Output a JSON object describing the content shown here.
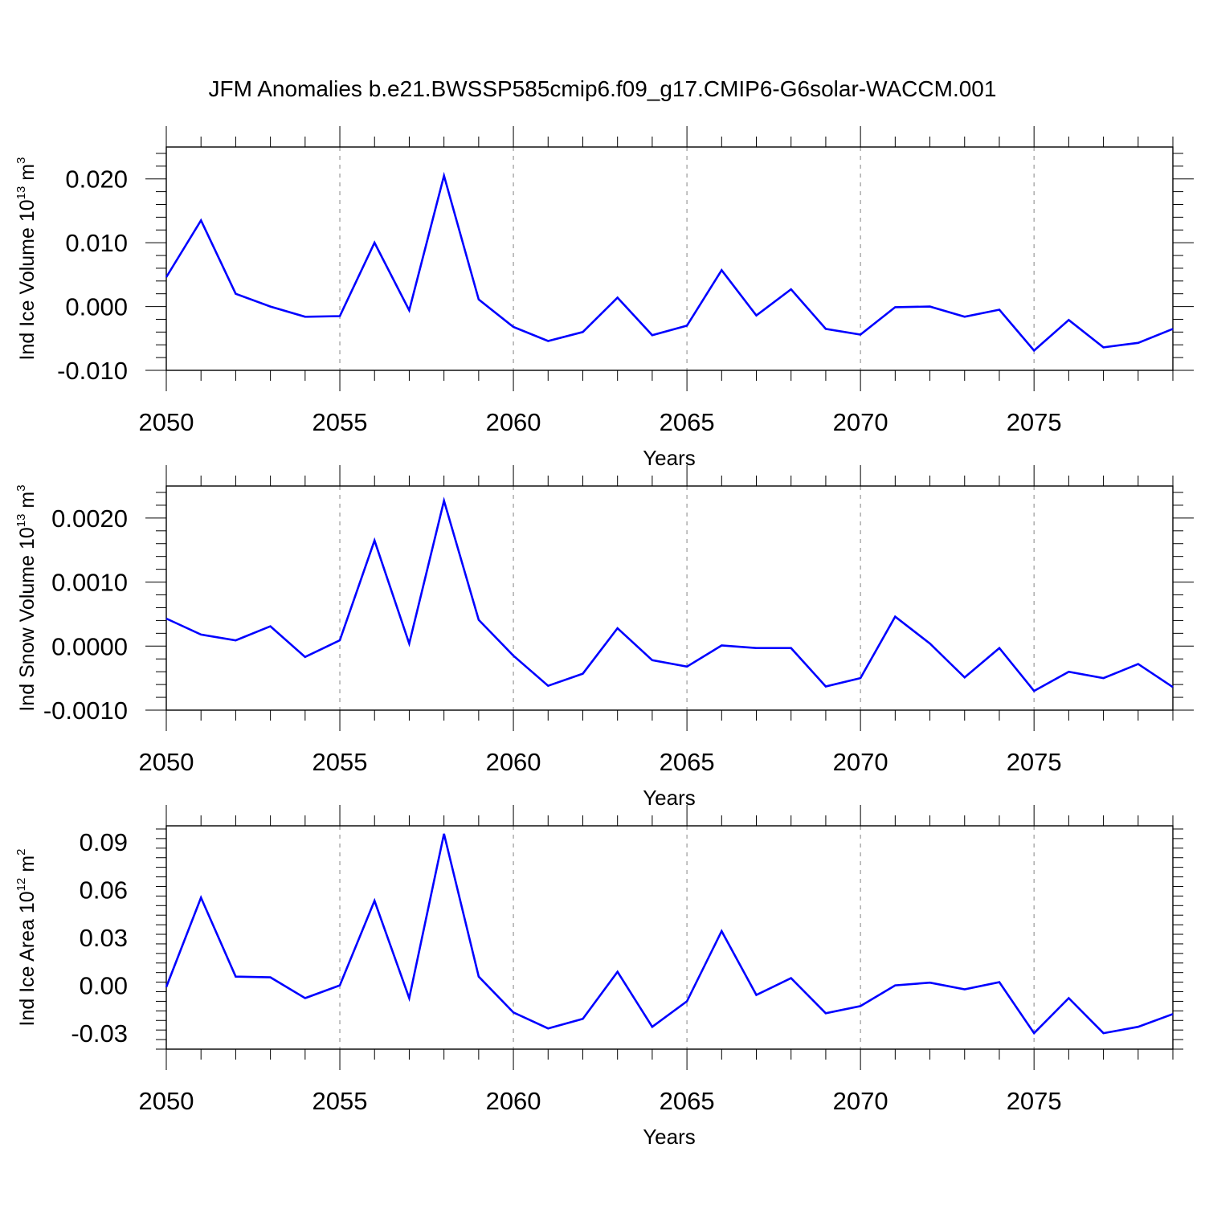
{
  "title": "JFM Anomalies b.e21.BWSSP585cmip6.f09_g17.CMIP6-G6solar-WACCM.001",
  "colors": {
    "line": "#0000ff",
    "axis": "#000000",
    "grid": "#999999"
  },
  "chart_data": [
    {
      "type": "line",
      "ylabel": {
        "text": "Ind Ice Volume 10",
        "sup": "13",
        "mid": " m",
        "sup2": "3"
      },
      "xlabel": "Years",
      "xlim": [
        2050,
        2079
      ],
      "ylim": [
        -0.01,
        0.025
      ],
      "xticks": [
        "2050",
        "2055",
        "2060",
        "2065",
        "2070",
        "2075"
      ],
      "yticks": [
        "-0.010",
        "0.000",
        "0.010",
        "0.020"
      ],
      "ytick_values": [
        -0.01,
        0.0,
        0.01,
        0.02
      ],
      "grid": "vertical dashed at labeled years",
      "x": [
        2050,
        2051,
        2052,
        2053,
        2054,
        2055,
        2056,
        2057,
        2058,
        2059,
        2060,
        2061,
        2062,
        2063,
        2064,
        2065,
        2066,
        2067,
        2068,
        2069,
        2070,
        2071,
        2072,
        2073,
        2074,
        2075,
        2076,
        2077,
        2078,
        2079
      ],
      "series": [
        {
          "values": [
            0.0046,
            0.0135,
            0.002,
            0.0,
            -0.0016,
            -0.0015,
            0.01,
            -0.0006,
            0.0205,
            0.0011,
            -0.0032,
            -0.0054,
            -0.004,
            0.0014,
            -0.0045,
            -0.003,
            0.0057,
            -0.0014,
            0.0027,
            -0.0035,
            -0.0044,
            -0.0001,
            0.0,
            -0.0016,
            -0.0005,
            -0.0069,
            -0.0021,
            -0.0064,
            -0.0057,
            -0.0035
          ]
        }
      ]
    },
    {
      "type": "line",
      "ylabel": {
        "text": "Ind Snow Volume 10",
        "sup": "13",
        "mid": " m",
        "sup2": "3"
      },
      "xlabel": "Years",
      "xlim": [
        2050,
        2079
      ],
      "ylim": [
        -0.001,
        0.0025
      ],
      "xticks": [
        "2050",
        "2055",
        "2060",
        "2065",
        "2070",
        "2075"
      ],
      "yticks": [
        "-0.0010",
        "0.0000",
        "0.0010",
        "0.0020"
      ],
      "ytick_values": [
        -0.001,
        0.0,
        0.001,
        0.002
      ],
      "grid": "vertical dashed at labeled years",
      "x": [
        2050,
        2051,
        2052,
        2053,
        2054,
        2055,
        2056,
        2057,
        2058,
        2059,
        2060,
        2061,
        2062,
        2063,
        2064,
        2065,
        2066,
        2067,
        2068,
        2069,
        2070,
        2071,
        2072,
        2073,
        2074,
        2075,
        2076,
        2077,
        2078,
        2079
      ],
      "series": [
        {
          "values": [
            0.00043,
            0.00018,
            9e-05,
            0.00031,
            -0.00017,
            9e-05,
            0.00165,
            4e-05,
            0.00227,
            0.00041,
            -0.00015,
            -0.00062,
            -0.00043,
            0.00028,
            -0.00022,
            -0.00032,
            1e-05,
            -3e-05,
            -3e-05,
            -0.00063,
            -0.0005,
            0.00046,
            4e-05,
            -0.00049,
            -3e-05,
            -0.0007,
            -0.0004,
            -0.0005,
            -0.00028,
            -0.00064
          ]
        }
      ]
    },
    {
      "type": "line",
      "ylabel": {
        "text": "Ind Ice Area 10",
        "sup": "12",
        "mid": " m",
        "sup2": "2"
      },
      "xlabel": "Years",
      "xlim": [
        2050,
        2079
      ],
      "ylim": [
        -0.04,
        0.1
      ],
      "xticks": [
        "2050",
        "2055",
        "2060",
        "2065",
        "2070",
        "2075"
      ],
      "yticks": [
        "-0.03",
        "0.00",
        "0.03",
        "0.06",
        "0.09"
      ],
      "ytick_values": [
        -0.03,
        0.0,
        0.03,
        0.06,
        0.09
      ],
      "grid": "vertical dashed at labeled years",
      "x": [
        2050,
        2051,
        2052,
        2053,
        2054,
        2055,
        2056,
        2057,
        2058,
        2059,
        2060,
        2061,
        2062,
        2063,
        2064,
        2065,
        2066,
        2067,
        2068,
        2069,
        2070,
        2071,
        2072,
        2073,
        2074,
        2075,
        2076,
        2077,
        2078,
        2079
      ],
      "series": [
        {
          "values": [
            -0.001,
            0.055,
            0.0055,
            0.005,
            -0.008,
            0.0,
            0.053,
            -0.008,
            0.095,
            0.0055,
            -0.017,
            -0.027,
            -0.021,
            0.0085,
            -0.026,
            -0.01,
            0.034,
            -0.006,
            0.0045,
            -0.0175,
            -0.013,
            0.0,
            0.0017,
            -0.0025,
            0.002,
            -0.03,
            -0.008,
            -0.03,
            -0.026,
            -0.018
          ]
        }
      ]
    }
  ]
}
